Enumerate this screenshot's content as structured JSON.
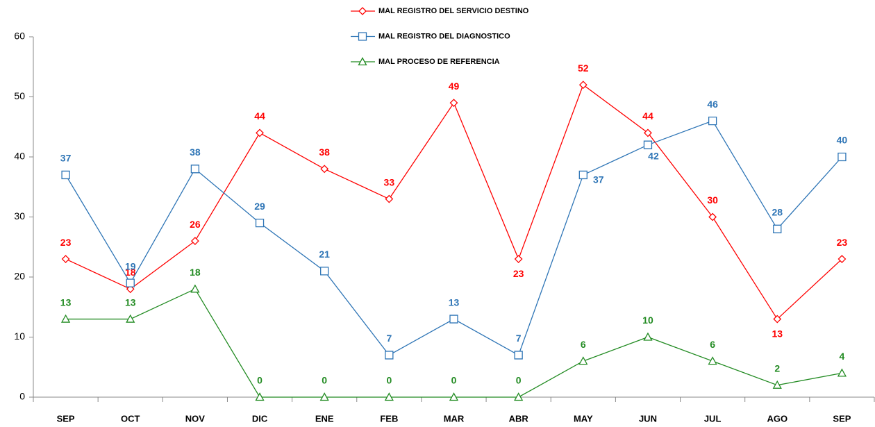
{
  "chart_data": {
    "type": "line",
    "categories": [
      "SEP",
      "OCT",
      "NOV",
      "DIC",
      "ENE",
      "FEB",
      "MAR",
      "ABR",
      "MAY",
      "JUN",
      "JUL",
      "AGO",
      "SEP"
    ],
    "series": [
      {
        "name": "MAL REGISTRO DEL SERVICIO DESTINO",
        "color": "#ff0000",
        "marker": "diamond",
        "values": [
          23,
          18,
          26,
          44,
          38,
          33,
          49,
          23,
          52,
          44,
          30,
          13,
          23
        ]
      },
      {
        "name": "MAL REGISTRO DEL DIAGNOSTICO",
        "color": "#2e75b6",
        "marker": "square",
        "values": [
          37,
          19,
          38,
          29,
          21,
          7,
          13,
          7,
          37,
          42,
          46,
          28,
          40
        ]
      },
      {
        "name": "MAL PROCESO DE REFERENCIA",
        "color": "#228b22",
        "marker": "triangle",
        "values": [
          13,
          13,
          18,
          0,
          0,
          0,
          0,
          0,
          6,
          10,
          6,
          2,
          4
        ]
      }
    ],
    "ylim": [
      0,
      60
    ],
    "yticks": [
      0,
      10,
      20,
      30,
      40,
      50,
      60
    ],
    "grid": false
  }
}
